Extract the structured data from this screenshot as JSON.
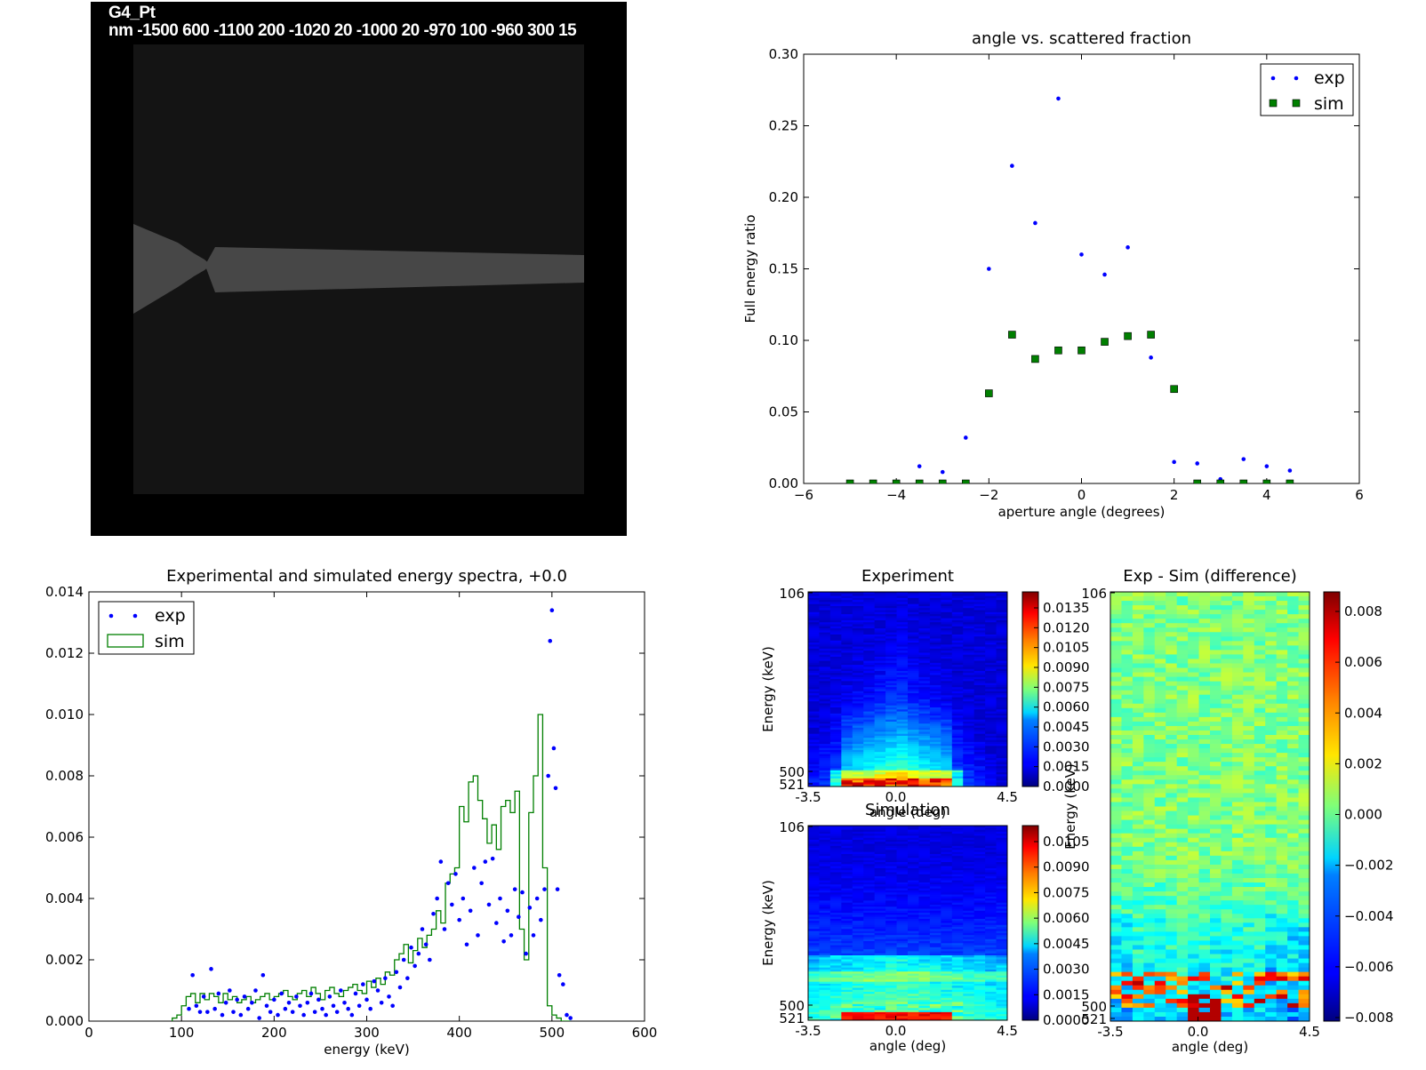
{
  "geometry_panel": {
    "title": "G4_Pt",
    "subtitle": "nm -1500 600 -1100 200 -1020 20 -1000 20 -970 100 -960 300 15"
  },
  "chart_data": [
    {
      "id": "scatter",
      "type": "scatter",
      "title": "angle vs. scattered fraction",
      "xlabel": "aperture angle (degrees)",
      "ylabel": "Full energy ratio",
      "xlim": [
        -6,
        6
      ],
      "ylim": [
        0,
        0.3
      ],
      "xticks": [
        "−6",
        "−4",
        "−2",
        "0",
        "2",
        "4",
        "6"
      ],
      "yticks": [
        "0.00",
        "0.05",
        "0.10",
        "0.15",
        "0.20",
        "0.25",
        "0.30"
      ],
      "legend": "top-right",
      "series": [
        {
          "name": "exp",
          "marker": "dot",
          "color": "#0000ff",
          "x": [
            -5,
            -4.5,
            -4,
            -3.5,
            -3,
            -2.5,
            -2,
            -1.5,
            -1,
            -0.5,
            0,
            0.5,
            1,
            1.5,
            2,
            2.5,
            3,
            3.5,
            4,
            4.5
          ],
          "y": [
            0.0,
            0.0,
            0.0,
            0.012,
            0.008,
            0.032,
            0.15,
            0.222,
            0.182,
            0.269,
            0.16,
            0.146,
            0.165,
            0.088,
            0.015,
            0.014,
            0.003,
            0.017,
            0.012,
            0.009
          ]
        },
        {
          "name": "sim",
          "marker": "square",
          "color": "#007f00",
          "x": [
            -5,
            -4.5,
            -4,
            -3.5,
            -3,
            -2.5,
            -2,
            -1.5,
            -1,
            -0.5,
            0,
            0.5,
            1,
            1.5,
            2,
            2.5,
            3,
            3.5,
            4,
            4.5
          ],
          "y": [
            0.0,
            0.0,
            0.0,
            0.0,
            0.0,
            0.0,
            0.063,
            0.104,
            0.087,
            0.093,
            0.093,
            0.099,
            0.103,
            0.104,
            0.066,
            0.0,
            0.0,
            0.0,
            0.0,
            0.0
          ]
        }
      ]
    },
    {
      "id": "spectra",
      "type": "line",
      "title": "Experimental and simulated energy spectra, +0.0",
      "xlabel": "energy (keV)",
      "ylabel": "",
      "xlim": [
        0,
        600
      ],
      "ylim": [
        0,
        0.014
      ],
      "xticks": [
        "0",
        "100",
        "200",
        "300",
        "400",
        "500",
        "600"
      ],
      "yticks": [
        "0.000",
        "0.002",
        "0.004",
        "0.006",
        "0.008",
        "0.010",
        "0.012",
        "0.014"
      ],
      "legend": "top-left",
      "series": [
        {
          "name": "exp",
          "marker": "dot",
          "color": "#0000ff",
          "x": [
            108,
            112,
            116,
            120,
            124,
            128,
            132,
            136,
            140,
            144,
            148,
            152,
            156,
            160,
            164,
            168,
            172,
            176,
            180,
            184,
            188,
            192,
            196,
            200,
            204,
            208,
            212,
            216,
            220,
            224,
            228,
            232,
            236,
            240,
            244,
            248,
            252,
            256,
            260,
            264,
            268,
            272,
            276,
            280,
            284,
            288,
            292,
            296,
            300,
            304,
            308,
            312,
            316,
            320,
            324,
            328,
            332,
            336,
            340,
            344,
            348,
            352,
            356,
            360,
            364,
            368,
            372,
            376,
            380,
            384,
            388,
            392,
            396,
            400,
            404,
            408,
            412,
            416,
            420,
            424,
            428,
            432,
            436,
            440,
            444,
            448,
            452,
            456,
            460,
            464,
            468,
            472,
            476,
            480,
            484,
            488,
            492,
            496,
            498,
            500,
            502,
            504,
            506,
            508,
            512,
            516,
            520
          ],
          "y": [
            0.0004,
            0.0015,
            0.0005,
            0.0003,
            0.0008,
            0.0003,
            0.0017,
            0.0004,
            0.0009,
            0.0002,
            0.0006,
            0.001,
            0.0003,
            0.0007,
            0.0002,
            0.0008,
            0.0004,
            0.0006,
            0.001,
            0.0001,
            0.0015,
            0.0005,
            0.0003,
            0.0007,
            0.0002,
            0.0009,
            0.0004,
            0.0006,
            0.0003,
            0.0008,
            0.0005,
            0.0002,
            0.0006,
            0.0009,
            0.0003,
            0.0007,
            0.0004,
            0.0002,
            0.0008,
            0.0005,
            0.0003,
            0.001,
            0.0006,
            0.0004,
            0.0002,
            0.0009,
            0.0005,
            0.0012,
            0.0007,
            0.0004,
            0.0013,
            0.001,
            0.0006,
            0.0014,
            0.0008,
            0.0005,
            0.0016,
            0.0011,
            0.002,
            0.0014,
            0.0024,
            0.0018,
            0.0022,
            0.003,
            0.0025,
            0.002,
            0.0035,
            0.004,
            0.0052,
            0.003,
            0.0045,
            0.0038,
            0.0048,
            0.0033,
            0.004,
            0.0025,
            0.0036,
            0.005,
            0.0028,
            0.0045,
            0.0052,
            0.0038,
            0.0053,
            0.0032,
            0.004,
            0.0026,
            0.0036,
            0.0028,
            0.0043,
            0.0034,
            0.0042,
            0.0022,
            0.0037,
            0.0028,
            0.004,
            0.0033,
            0.0043,
            0.008,
            0.0124,
            0.0134,
            0.0089,
            0.0076,
            0.0043,
            0.0015,
            0.0012,
            0.0002,
            0.0001
          ]
        },
        {
          "name": "sim",
          "marker": "step",
          "color": "#007f00",
          "x": [
            90,
            95,
            100,
            105,
            110,
            115,
            120,
            125,
            130,
            135,
            140,
            145,
            150,
            155,
            160,
            165,
            170,
            175,
            180,
            185,
            190,
            195,
            200,
            205,
            210,
            215,
            220,
            225,
            230,
            235,
            240,
            245,
            250,
            255,
            260,
            265,
            270,
            275,
            280,
            285,
            290,
            295,
            300,
            305,
            310,
            315,
            320,
            325,
            330,
            335,
            340,
            345,
            350,
            355,
            360,
            365,
            370,
            375,
            380,
            385,
            390,
            395,
            400,
            405,
            410,
            415,
            420,
            425,
            430,
            435,
            440,
            445,
            450,
            455,
            460,
            465,
            470,
            475,
            480,
            485,
            490,
            495,
            500,
            505,
            510,
            515
          ],
          "y": [
            0.0001,
            0.0002,
            0.0005,
            0.0008,
            0.0009,
            0.0006,
            0.0009,
            0.0007,
            0.0009,
            0.0008,
            0.0006,
            0.0009,
            0.0007,
            0.0008,
            0.0006,
            0.0007,
            0.0008,
            0.0006,
            0.0007,
            0.0008,
            0.0009,
            0.0007,
            0.0008,
            0.0009,
            0.001,
            0.0008,
            0.0007,
            0.0009,
            0.001,
            0.0008,
            0.0011,
            0.0009,
            0.0007,
            0.001,
            0.0011,
            0.0009,
            0.0008,
            0.001,
            0.0011,
            0.0012,
            0.001,
            0.0009,
            0.0013,
            0.0011,
            0.0014,
            0.0012,
            0.0016,
            0.0015,
            0.002,
            0.0022,
            0.0025,
            0.0019,
            0.0023,
            0.0027,
            0.0024,
            0.0028,
            0.003,
            0.0036,
            0.0032,
            0.0045,
            0.0048,
            0.005,
            0.007,
            0.0065,
            0.0078,
            0.008,
            0.0072,
            0.0066,
            0.0058,
            0.0064,
            0.0056,
            0.007,
            0.0072,
            0.0068,
            0.0075,
            0.003,
            0.002,
            0.0068,
            0.008,
            0.01,
            0.005,
            0.0005,
            0.0002,
            0.0001,
            0.0,
            0.0
          ]
        }
      ]
    },
    {
      "id": "experiment",
      "type": "heatmap",
      "title": "Experiment",
      "xlabel": "angle (deg)",
      "ylabel": "Energy (keV)",
      "xticks": [
        "-3.5",
        "0.0",
        "4.5"
      ],
      "yticks": [
        "106",
        "500",
        "521"
      ],
      "colormap": "jet",
      "colorbar_ticks": [
        "0.0135",
        "0.0120",
        "0.0105",
        "0.0090",
        "0.0075",
        "0.0060",
        "0.0045",
        "0.0030",
        "0.0015",
        "0.0000"
      ]
    },
    {
      "id": "simulation",
      "type": "heatmap",
      "title": "Simulation",
      "xlabel": "angle (deg)",
      "ylabel": "Energy (keV)",
      "xticks": [
        "-3.5",
        "0.0",
        "4.5"
      ],
      "yticks": [
        "106",
        "500",
        "521"
      ],
      "colormap": "jet",
      "colorbar_ticks": [
        "0.0105",
        "0.0090",
        "0.0075",
        "0.0060",
        "0.0045",
        "0.0030",
        "0.0015",
        "0.0000"
      ]
    },
    {
      "id": "difference",
      "type": "heatmap",
      "title": "Exp - Sim (difference)",
      "xlabel": "angle (deg)",
      "ylabel": "Energy (keV)",
      "xticks": [
        "-3.5",
        "0.0",
        "4.5"
      ],
      "yticks": [
        "106",
        "500",
        "521"
      ],
      "colormap": "jet",
      "colorbar_ticks": [
        "0.008",
        "0.006",
        "0.004",
        "0.002",
        "0.000",
        "−0.002",
        "−0.004",
        "−0.006",
        "−0.008"
      ]
    }
  ]
}
